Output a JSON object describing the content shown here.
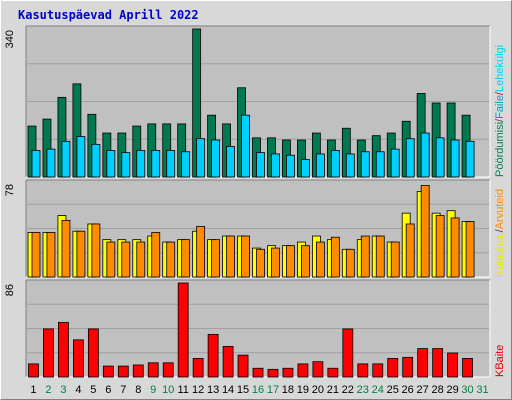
{
  "title": "Kasutuspäevad Aprill 2022",
  "colors": {
    "visits": "#007850",
    "files": "#00c8e8",
    "hits": "#208060",
    "kbytes_top": "#00d0ff",
    "sites": "#ffff00",
    "kbytes_orange": "#ff8c00",
    "kbytes_red": "#ff0000",
    "weekend_label": "#008040",
    "plot_bg": "#c0c0c0"
  },
  "chart_data": [
    {
      "type": "bar",
      "ytick": "340",
      "ylim": [
        0,
        340
      ],
      "legend": [
        {
          "text": "Pöördumisi",
          "color": "#00805a"
        },
        {
          "text": "/",
          "color": "#404040"
        },
        {
          "text": "Faile",
          "color": "#00a0c0"
        },
        {
          "text": "/",
          "color": "#404040"
        },
        {
          "text": "Lehekülgi",
          "color": "#00d0ff"
        }
      ],
      "categories": [
        "1",
        "2",
        "3",
        "4",
        "5",
        "6",
        "7",
        "8",
        "9",
        "10",
        "11",
        "12",
        "13",
        "14",
        "15",
        "16",
        "17",
        "18",
        "19",
        "20",
        "21",
        "22",
        "23",
        "24",
        "25",
        "26",
        "27",
        "28",
        "29",
        "30",
        "31"
      ],
      "series": [
        {
          "name": "Pöördumisi",
          "values": [
            117,
            133,
            183,
            214,
            144,
            101,
            101,
            117,
            122,
            122,
            122,
            340,
            142,
            122,
            205,
            90,
            90,
            85,
            85,
            101,
            85,
            112,
            85,
            95,
            101,
            128,
            192,
            170,
            170,
            142,
            0
          ]
        },
        {
          "name": "Lehekülgi",
          "values": [
            61,
            64,
            82,
            93,
            75,
            61,
            56,
            61,
            61,
            61,
            58,
            88,
            85,
            70,
            142,
            56,
            53,
            50,
            40,
            53,
            61,
            53,
            58,
            58,
            64,
            88,
            101,
            90,
            85,
            82,
            0
          ]
        }
      ]
    },
    {
      "type": "bar",
      "ytick": "78",
      "ylim": [
        0,
        78
      ],
      "legend": [
        {
          "text": "Külastusi",
          "color": "#e8e800"
        },
        {
          "text": "/",
          "color": "#404040"
        },
        {
          "text": "Arvuteid",
          "color": "#ff8c00"
        }
      ],
      "categories": [
        "1",
        "2",
        "3",
        "4",
        "5",
        "6",
        "7",
        "8",
        "9",
        "10",
        "11",
        "12",
        "13",
        "14",
        "15",
        "16",
        "17",
        "18",
        "19",
        "20",
        "21",
        "22",
        "23",
        "24",
        "25",
        "26",
        "27",
        "28",
        "29",
        "30",
        "31"
      ],
      "series": [
        {
          "name": "Külastusi",
          "values": [
            37,
            37,
            51,
            38,
            44,
            31,
            31,
            31,
            34,
            29,
            31,
            38,
            31,
            34,
            34,
            24,
            26,
            26,
            29,
            34,
            31,
            23,
            31,
            34,
            29,
            53,
            71,
            53,
            55,
            46,
            0
          ]
        },
        {
          "name": "Arvuteid",
          "values": [
            37,
            37,
            47,
            38,
            44,
            29,
            29,
            29,
            37,
            29,
            31,
            42,
            31,
            34,
            34,
            23,
            24,
            26,
            26,
            29,
            33,
            23,
            34,
            34,
            29,
            44,
            76,
            51,
            49,
            46,
            0
          ]
        }
      ]
    },
    {
      "type": "bar",
      "ytick": "86",
      "ylim": [
        0,
        86
      ],
      "legend": [
        {
          "text": "KBaite",
          "color": "#e00000"
        }
      ],
      "categories": [
        "1",
        "2",
        "3",
        "4",
        "5",
        "6",
        "7",
        "8",
        "9",
        "10",
        "11",
        "12",
        "13",
        "14",
        "15",
        "16",
        "17",
        "18",
        "19",
        "20",
        "21",
        "22",
        "23",
        "24",
        "25",
        "26",
        "27",
        "28",
        "29",
        "30",
        "31"
      ],
      "series": [
        {
          "name": "KBaite",
          "values": [
            12,
            44,
            50,
            34,
            44,
            10,
            10,
            11,
            13,
            13,
            86,
            17,
            39,
            28,
            20,
            8,
            7,
            8,
            12,
            14,
            8,
            44,
            12,
            12,
            17,
            18,
            26,
            26,
            22,
            17,
            0
          ]
        }
      ]
    }
  ]
}
